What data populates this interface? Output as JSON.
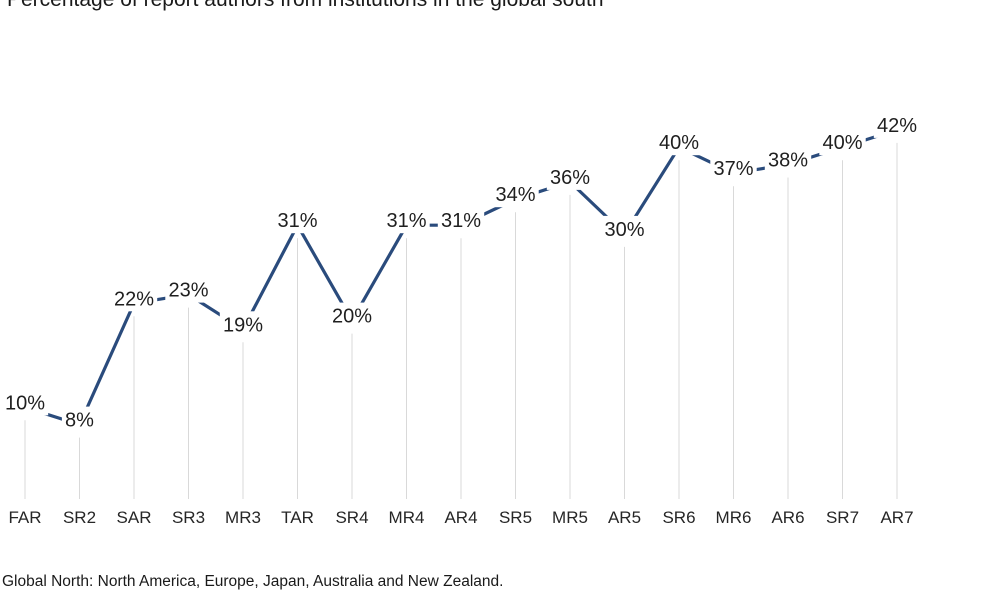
{
  "title": {
    "text": "Percentage of report authors from institutions in the global south"
  },
  "footnote": {
    "text": "Global North: North America, Europe, Japan, Australia and New Zealand."
  },
  "chart_data": {
    "type": "line",
    "title": "Percentage of report authors from institutions in the global south",
    "categories": [
      "FAR",
      "SR2",
      "SAR",
      "SR3",
      "MR3",
      "TAR",
      "SR4",
      "MR4",
      "AR4",
      "SR5",
      "MR5",
      "AR5",
      "SR6",
      "MR6",
      "AR6",
      "SR7",
      "AR7"
    ],
    "values": [
      10,
      8,
      22,
      23,
      19,
      31,
      20,
      31,
      31,
      34,
      36,
      30,
      40,
      37,
      38,
      40,
      42
    ],
    "data_labels": [
      "10%",
      "8%",
      "22%",
      "23%",
      "19%",
      "31%",
      "20%",
      "31%",
      "31%",
      "34%",
      "36%",
      "30%",
      "40%",
      "37%",
      "38%",
      "40%",
      "42%"
    ],
    "xlabel": "",
    "ylabel": "",
    "unit": "%",
    "ylim": [
      0,
      45
    ],
    "legend": false,
    "grid": false,
    "droplines": true,
    "y_axis_visible": false,
    "colors": {
      "line": "#2a4b7c",
      "dropline": "#d9d9d9",
      "data_label": "#1f1f1f",
      "axis_label": "#262626",
      "background": "#ffffff"
    }
  }
}
